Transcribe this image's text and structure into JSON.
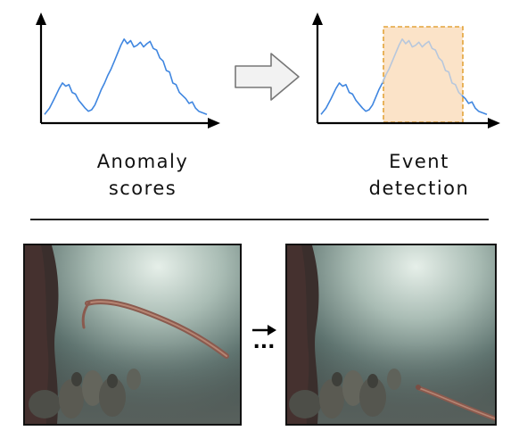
{
  "top_panel": {
    "left_plot": {
      "caption_line1": "Anomaly",
      "caption_line2": "scores"
    },
    "right_plot": {
      "caption_line1": "Event",
      "caption_line2": "detection"
    }
  },
  "bottom_panel": {
    "sequence_marker": "...",
    "left_frame": {
      "subject": "underwater scene with pipefish swimming"
    },
    "right_frame": {
      "subject": "underwater scene with pipefish tail at lower right"
    }
  },
  "colors": {
    "score_line": "#3f86e0",
    "score_line_muted": "#a9c4e8",
    "event_fill": "#fbe3c8",
    "event_border": "#e3a43a",
    "arrow_outline": "#777777",
    "arrow_fill": "#f2f2f2",
    "axis": "#000000"
  }
}
